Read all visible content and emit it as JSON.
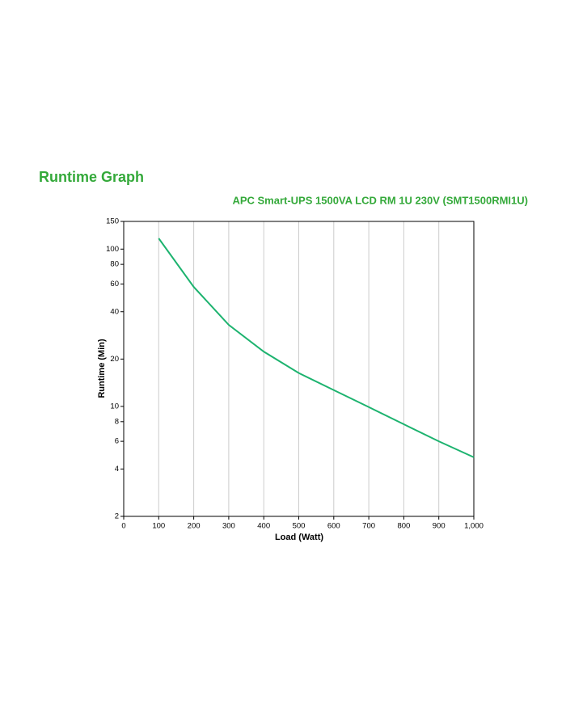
{
  "chart_data": {
    "type": "line",
    "title": "Runtime Graph",
    "subtitle": "APC Smart-UPS 1500VA LCD RM 1U 230V (SMT1500RMI1U)",
    "x_label": "Load (Watt)",
    "y_label": "Runtime (Min)",
    "x": [
      100,
      200,
      300,
      400,
      500,
      600,
      700,
      800,
      900,
      1000
    ],
    "series": [
      {
        "name": "Runtime",
        "color": "#1db36f",
        "values": [
          117,
          57.5,
          33,
          22.3,
          16.3,
          12.7,
          9.9,
          7.7,
          6.0,
          4.75
        ]
      }
    ],
    "xlim": [
      0,
      1000
    ],
    "xticks": [
      0,
      100,
      200,
      300,
      400,
      500,
      600,
      700,
      800,
      900,
      {
        "value": 1000,
        "label": "1,000"
      }
    ],
    "ylim": [
      2,
      150
    ],
    "yticks": [
      2,
      4,
      6,
      8,
      10,
      20,
      40,
      60,
      80,
      100,
      150
    ],
    "y_scale": "log",
    "grid": "x",
    "title_color": "#34a93a"
  }
}
